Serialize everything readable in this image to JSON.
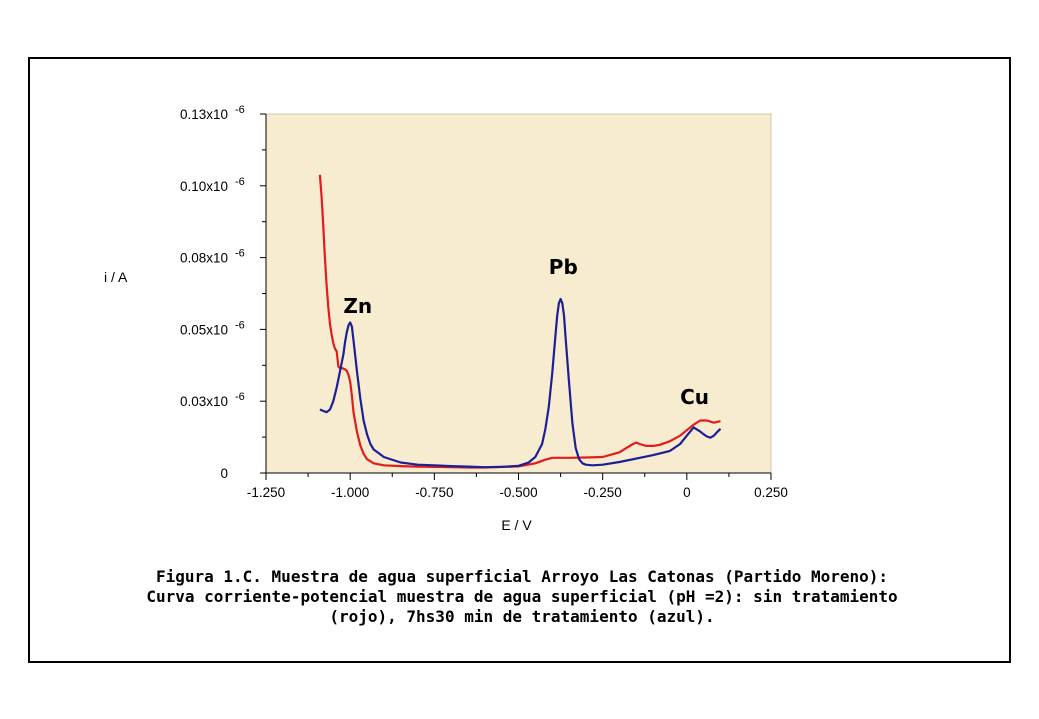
{
  "chart_data": {
    "type": "line",
    "xlabel": "E / V",
    "ylabel": "i / A",
    "xlim": [
      -1.25,
      0.25
    ],
    "ylim": [
      0,
      0.13
    ],
    "x_ticks": [
      {
        "value": -1.25,
        "label": "-1.250"
      },
      {
        "value": -1.0,
        "label": "-1.000"
      },
      {
        "value": -0.75,
        "label": "-0.750"
      },
      {
        "value": -0.5,
        "label": "-0.500"
      },
      {
        "value": -0.25,
        "label": "-0.250"
      },
      {
        "value": 0,
        "label": "0"
      },
      {
        "value": 0.25,
        "label": "0.250"
      }
    ],
    "y_ticks": [
      {
        "value": 0,
        "label": "0",
        "exponent": ""
      },
      {
        "value": 0.026,
        "label": "0.03x10",
        "exponent": "-6"
      },
      {
        "value": 0.052,
        "label": "0.05x10",
        "exponent": "-6"
      },
      {
        "value": 0.078,
        "label": "0.08x10",
        "exponent": "-6"
      },
      {
        "value": 0.104,
        "label": "0.10x10",
        "exponent": "-6"
      },
      {
        "value": 0.13,
        "label": "0.13x10",
        "exponent": "-6"
      }
    ],
    "plot_background": "#f8ecd0",
    "series": [
      {
        "color": "#e21b1b",
        "x": [
          -1.09,
          -1.085,
          -1.08,
          -1.075,
          -1.07,
          -1.065,
          -1.06,
          -1.055,
          -1.05,
          -1.045,
          -1.04,
          -1.035,
          -1.03,
          -1.025,
          -1.02,
          -1.015,
          -1.01,
          -1.005,
          -1.0,
          -0.995,
          -0.99,
          -0.98,
          -0.97,
          -0.96,
          -0.95,
          -0.93,
          -0.9,
          -0.85,
          -0.8,
          -0.75,
          -0.7,
          -0.65,
          -0.6,
          -0.55,
          -0.5,
          -0.45,
          -0.42,
          -0.4,
          -0.35,
          -0.3,
          -0.25,
          -0.2,
          -0.18,
          -0.16,
          -0.15,
          -0.14,
          -0.12,
          -0.1,
          -0.08,
          -0.05,
          -0.02,
          0.0,
          0.02,
          0.04,
          0.06,
          0.08,
          0.1
        ],
        "y": [
          0.108,
          0.1,
          0.09,
          0.078,
          0.068,
          0.06,
          0.054,
          0.05,
          0.047,
          0.045,
          0.044,
          0.0385,
          0.038,
          0.038,
          0.0378,
          0.0375,
          0.037,
          0.0355,
          0.033,
          0.028,
          0.022,
          0.015,
          0.01,
          0.007,
          0.005,
          0.0035,
          0.0028,
          0.0025,
          0.0023,
          0.0022,
          0.0021,
          0.002,
          0.002,
          0.0022,
          0.0024,
          0.0035,
          0.0048,
          0.0055,
          0.0055,
          0.0056,
          0.0058,
          0.0075,
          0.009,
          0.0105,
          0.011,
          0.0105,
          0.0098,
          0.0098,
          0.0102,
          0.0115,
          0.0135,
          0.0155,
          0.0175,
          0.019,
          0.019,
          0.0182,
          0.0188
        ]
      },
      {
        "color": "#1c1f96",
        "x": [
          -1.09,
          -1.08,
          -1.07,
          -1.06,
          -1.05,
          -1.04,
          -1.03,
          -1.02,
          -1.015,
          -1.01,
          -1.005,
          -1.0,
          -0.995,
          -0.99,
          -0.98,
          -0.97,
          -0.96,
          -0.95,
          -0.94,
          -0.93,
          -0.9,
          -0.85,
          -0.8,
          -0.75,
          -0.7,
          -0.65,
          -0.6,
          -0.55,
          -0.5,
          -0.47,
          -0.45,
          -0.43,
          -0.42,
          -0.41,
          -0.4,
          -0.39,
          -0.385,
          -0.38,
          -0.375,
          -0.37,
          -0.365,
          -0.36,
          -0.35,
          -0.34,
          -0.33,
          -0.32,
          -0.31,
          -0.3,
          -0.28,
          -0.25,
          -0.2,
          -0.15,
          -0.1,
          -0.05,
          -0.02,
          0.0,
          0.02,
          0.03,
          0.04,
          0.05,
          0.06,
          0.07,
          0.08,
          0.09,
          0.1
        ],
        "y": [
          0.023,
          0.0225,
          0.022,
          0.023,
          0.026,
          0.031,
          0.037,
          0.043,
          0.0475,
          0.051,
          0.0535,
          0.0545,
          0.053,
          0.048,
          0.037,
          0.027,
          0.019,
          0.014,
          0.0105,
          0.0085,
          0.0058,
          0.0038,
          0.003,
          0.0028,
          0.0025,
          0.0023,
          0.0021,
          0.0022,
          0.0026,
          0.0038,
          0.0058,
          0.0105,
          0.016,
          0.024,
          0.036,
          0.05,
          0.057,
          0.0615,
          0.063,
          0.0615,
          0.057,
          0.049,
          0.033,
          0.018,
          0.009,
          0.005,
          0.0035,
          0.003,
          0.0028,
          0.003,
          0.004,
          0.0052,
          0.0065,
          0.008,
          0.0105,
          0.0135,
          0.0165,
          0.0158,
          0.015,
          0.014,
          0.0132,
          0.0128,
          0.0135,
          0.0148,
          0.016
        ]
      }
    ],
    "annotations": [
      {
        "text": "Zn",
        "x": -1.02,
        "y": 0.058
      },
      {
        "text": "Pb",
        "x": -0.41,
        "y": 0.072
      },
      {
        "text": "Cu",
        "x": -0.02,
        "y": 0.025
      }
    ]
  },
  "caption": {
    "line1": "Figura 1.C. Muestra de agua superficial Arroyo Las Catonas (Partido Moreno):",
    "line2": "Curva corriente-potencial muestra de agua superficial (pH =2):  sin tratamiento",
    "line3": "(rojo), 7hs30 min de tratamiento (azul)."
  }
}
